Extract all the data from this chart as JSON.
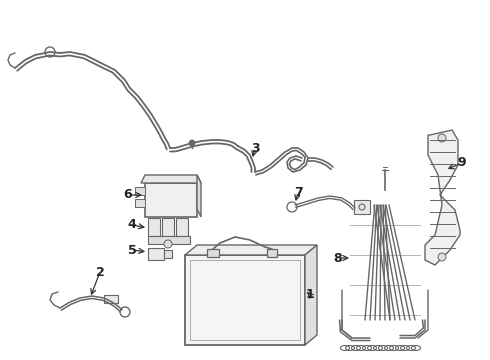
{
  "background_color": "#ffffff",
  "line_color": "#666666",
  "label_color": "#222222",
  "arrow_color": "#333333",
  "fig_width": 4.9,
  "fig_height": 3.6,
  "dpi": 100,
  "lw_main": 1.2,
  "lw_thin": 0.85,
  "lw_cable": 1.5
}
